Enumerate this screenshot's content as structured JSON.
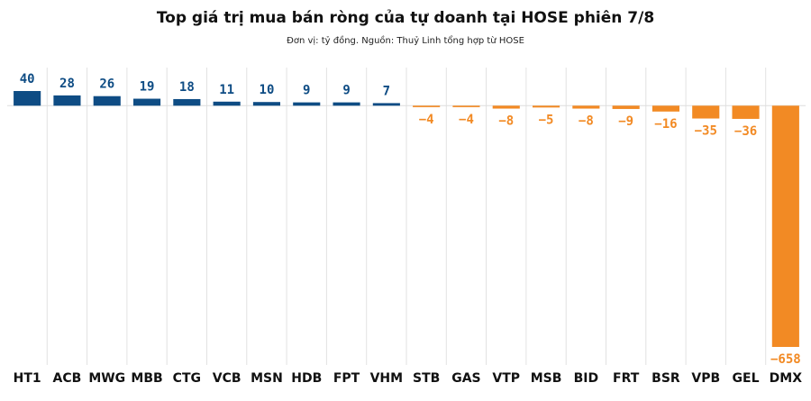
{
  "chart_data": {
    "type": "bar",
    "title": "Top giá trị mua bán ròng của tự doanh tại HOSE phiên 7/8",
    "subtitle": "Đơn vị: tỷ đồng. Nguồn: Thuỷ Linh tổng hợp từ HOSE",
    "categories": [
      "HT1",
      "ACB",
      "MWG",
      "MBB",
      "CTG",
      "VCB",
      "MSN",
      "HDB",
      "FPT",
      "VHM",
      "STB",
      "GAS",
      "VTP",
      "MSB",
      "BID",
      "FRT",
      "BSR",
      "VPB",
      "GEL",
      "DMX"
    ],
    "values": [
      40,
      28,
      26,
      19,
      18,
      11,
      10,
      9,
      9,
      7,
      -4,
      -4,
      -8,
      -5,
      -8,
      -9,
      -16,
      -35,
      -36,
      -658
    ],
    "value_labels": [
      "40",
      "28",
      "26",
      "19",
      "18",
      "11",
      "10",
      "9",
      "9",
      "7",
      "−4",
      "−4",
      "−8",
      "−5",
      "−8",
      "−9",
      "−16",
      "−35",
      "−36",
      "−658"
    ],
    "positive_color": "#0e4c84",
    "negative_color": "#f28a24",
    "ylim": [
      -658,
      40
    ]
  }
}
